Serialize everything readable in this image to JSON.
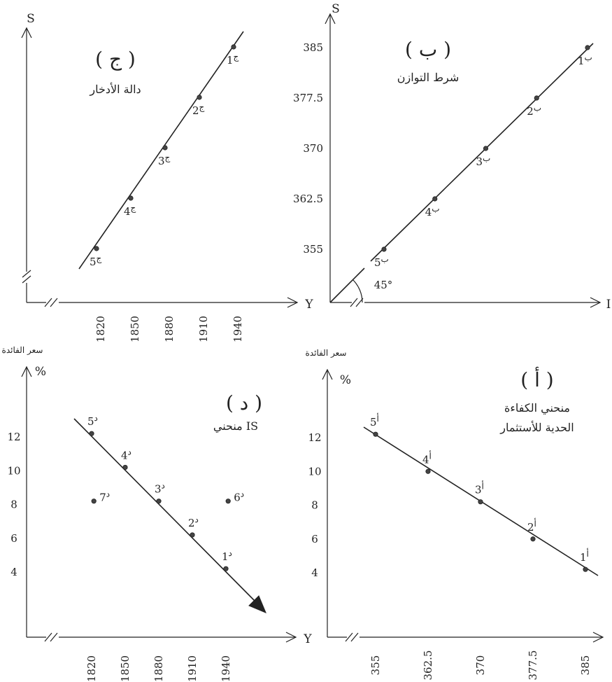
{
  "chart_data": [
    {
      "id": "c",
      "type": "line",
      "panel_label": "( ج )",
      "title": "دالة الأدخار",
      "xlabel": "Y",
      "ylabel": "S",
      "x_ticks": [
        "1820",
        "1850",
        "1880",
        "1910",
        "1940"
      ],
      "points": [
        {
          "label": "ج1",
          "num": "1",
          "mark": "ج",
          "x": 1940,
          "y": 385
        },
        {
          "label": "ج2",
          "num": "2",
          "mark": "ج",
          "x": 1910,
          "y": 377.5
        },
        {
          "label": "ج3",
          "num": "3",
          "mark": "ج",
          "x": 1880,
          "y": 370
        },
        {
          "label": "ج4",
          "num": "4",
          "mark": "ج",
          "x": 1850,
          "y": 362.5
        },
        {
          "label": "ج5",
          "num": "5",
          "mark": "ج",
          "x": 1820,
          "y": 355
        }
      ]
    },
    {
      "id": "b",
      "type": "line",
      "panel_label": "( ب )",
      "title": "شرط التوازن",
      "xlabel": "I",
      "ylabel": "S",
      "y_ticks": [
        "385",
        "377.5",
        "370",
        "362.5",
        "355"
      ],
      "angle_label": "45°",
      "points": [
        {
          "label": "ب1",
          "num": "1",
          "mark": "ب",
          "x": 385,
          "y": 385
        },
        {
          "label": "ب2",
          "num": "2",
          "mark": "ب",
          "x": 377.5,
          "y": 377.5
        },
        {
          "label": "ب3",
          "num": "3",
          "mark": "ب",
          "x": 370,
          "y": 370
        },
        {
          "label": "ب4",
          "num": "4",
          "mark": "ب",
          "x": 362.5,
          "y": 362.5
        },
        {
          "label": "ب5",
          "num": "5",
          "mark": "ب",
          "x": 355,
          "y": 355
        }
      ]
    },
    {
      "id": "d",
      "type": "line",
      "panel_label": "( د )",
      "title": "منحني  IS",
      "xlabel": "Y",
      "ylabel": "%",
      "ylabel_top": "سعر الفائدة",
      "x_ticks": [
        "1820",
        "1850",
        "1880",
        "1910",
        "1940"
      ],
      "y_ticks": [
        "12",
        "10",
        "8",
        "6",
        "4"
      ],
      "points": [
        {
          "label": "د5",
          "num": "5",
          "mark": "د",
          "x": 1820,
          "y": 12.2
        },
        {
          "label": "د4",
          "num": "4",
          "mark": "د",
          "x": 1850,
          "y": 10.2
        },
        {
          "label": "د3",
          "num": "3",
          "mark": "د",
          "x": 1880,
          "y": 8.2
        },
        {
          "label": "د2",
          "num": "2",
          "mark": "د",
          "x": 1910,
          "y": 6.2
        },
        {
          "label": "د1",
          "num": "1",
          "mark": "د",
          "x": 1940,
          "y": 4.2
        }
      ],
      "off_points": [
        {
          "label": "د7",
          "num": "7",
          "mark": "د",
          "x": 1822,
          "y": 8.2
        },
        {
          "label": "د6",
          "num": "6",
          "mark": "د",
          "x": 1942,
          "y": 8.2
        }
      ]
    },
    {
      "id": "a",
      "type": "line",
      "panel_label": "( أ )",
      "title": [
        "منحني الكفاءة",
        "الحدية للأستثمار"
      ],
      "xlabel": "",
      "ylabel": "%",
      "ylabel_top": "سعر الفائدة",
      "x_ticks": [
        "355",
        "362.5",
        "370",
        "377.5",
        "385"
      ],
      "y_ticks": [
        "12",
        "10",
        "8",
        "6",
        "4"
      ],
      "points": [
        {
          "label": "أ5",
          "num": "5",
          "mark": "أ",
          "x": 355,
          "y": 12.2
        },
        {
          "label": "أ4",
          "num": "4",
          "mark": "أ",
          "x": 362.5,
          "y": 10.0
        },
        {
          "label": "أ3",
          "num": "3",
          "mark": "أ",
          "x": 370,
          "y": 8.2
        },
        {
          "label": "أ2",
          "num": "2",
          "mark": "أ",
          "x": 377.5,
          "y": 6.0
        },
        {
          "label": "أ1",
          "num": "1",
          "mark": "أ",
          "x": 385,
          "y": 4.2
        }
      ]
    }
  ]
}
